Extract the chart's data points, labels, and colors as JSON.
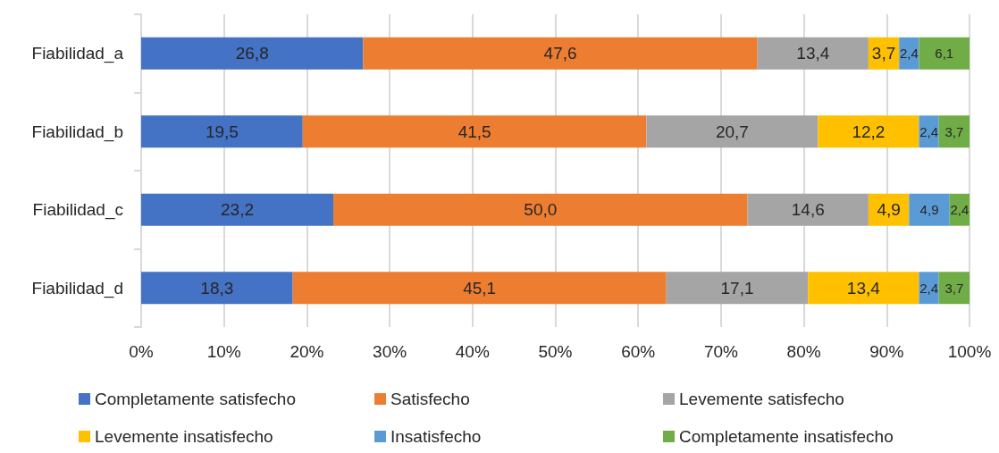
{
  "chart_data": {
    "type": "bar",
    "orientation": "horizontal",
    "stacked": true,
    "categories": [
      "Fiabilidad_a",
      "Fiabilidad_b",
      "Fiabilidad_c",
      "Fiabilidad_d"
    ],
    "series": [
      {
        "name": "Completamente satisfecho",
        "color": "#4472c4",
        "values": [
          26.8,
          19.5,
          23.2,
          18.3
        ],
        "value_labels": [
          "26,8",
          "19,5",
          "23,2",
          "18,3"
        ]
      },
      {
        "name": "Satisfecho",
        "color": "#ed7d31",
        "values": [
          47.6,
          41.5,
          50.0,
          45.1
        ],
        "value_labels": [
          "47,6",
          "41,5",
          "50,0",
          "45,1"
        ]
      },
      {
        "name": "Levemente satisfecho",
        "color": "#a5a5a5",
        "values": [
          13.4,
          20.7,
          14.6,
          17.1
        ],
        "value_labels": [
          "13,4",
          "20,7",
          "14,6",
          "17,1"
        ]
      },
      {
        "name": "Levemente insatisfecho",
        "color": "#ffc000",
        "values": [
          3.7,
          12.2,
          4.9,
          13.4
        ],
        "value_labels": [
          "3,7",
          "12,2",
          "4,9",
          "13,4"
        ]
      },
      {
        "name": "Insatisfecho",
        "color": "#5b9bd5",
        "values": [
          2.4,
          2.4,
          4.9,
          2.4
        ],
        "value_labels": [
          "2,4",
          "2,4",
          "4,9",
          "2,4"
        ]
      },
      {
        "name": "Completamente insatisfecho",
        "color": "#70ad47",
        "values": [
          6.1,
          3.7,
          2.4,
          3.7
        ],
        "value_labels": [
          "6,1",
          "3,7",
          "2,4",
          "3,7"
        ]
      }
    ],
    "xlim": [
      0,
      100
    ],
    "xticks": [
      {
        "value": 0,
        "label": "0%"
      },
      {
        "value": 10,
        "label": "10%"
      },
      {
        "value": 20,
        "label": "20%"
      },
      {
        "value": 30,
        "label": "30%"
      },
      {
        "value": 40,
        "label": "40%"
      },
      {
        "value": 50,
        "label": "50%"
      },
      {
        "value": 60,
        "label": "60%"
      },
      {
        "value": 70,
        "label": "70%"
      },
      {
        "value": 80,
        "label": "80%"
      },
      {
        "value": 90,
        "label": "90%"
      },
      {
        "value": 100,
        "label": "100%"
      }
    ],
    "grid": "x",
    "legend": "bottom"
  }
}
